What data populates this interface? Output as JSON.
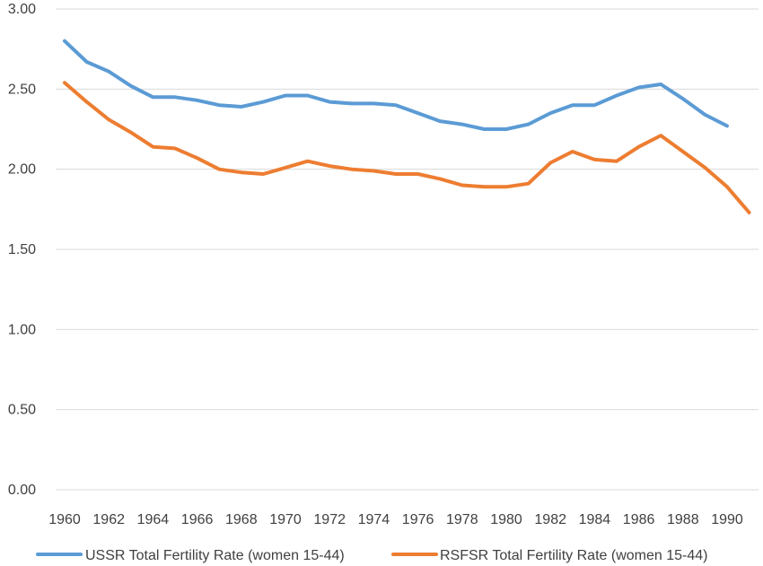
{
  "chart_data": {
    "type": "line",
    "title": "",
    "xlabel": "",
    "ylabel": "",
    "x": [
      1960,
      1961,
      1962,
      1963,
      1964,
      1965,
      1966,
      1967,
      1968,
      1969,
      1970,
      1971,
      1972,
      1973,
      1974,
      1975,
      1976,
      1977,
      1978,
      1979,
      1980,
      1981,
      1982,
      1983,
      1984,
      1985,
      1986,
      1987,
      1988,
      1989,
      1990,
      1991
    ],
    "x_tick_labels": [
      "1960",
      "1962",
      "1964",
      "1966",
      "1968",
      "1970",
      "1972",
      "1974",
      "1976",
      "1978",
      "1980",
      "1982",
      "1984",
      "1986",
      "1988",
      "1990"
    ],
    "y_tick_labels": [
      "0.00",
      "0.50",
      "1.00",
      "1.50",
      "2.00",
      "2.50",
      "3.00"
    ],
    "ylim": [
      0,
      3
    ],
    "grid": true,
    "legend_position": "bottom",
    "series": [
      {
        "name": "USSR Total Fertility Rate (women 15-44)",
        "color": "#5b9bd5",
        "values": [
          2.8,
          2.67,
          2.61,
          2.52,
          2.45,
          2.45,
          2.43,
          2.4,
          2.39,
          2.42,
          2.46,
          2.46,
          2.42,
          2.41,
          2.41,
          2.4,
          2.35,
          2.3,
          2.28,
          2.25,
          2.25,
          2.28,
          2.35,
          2.4,
          2.4,
          2.46,
          2.51,
          2.53,
          2.44,
          2.34,
          2.27,
          null
        ]
      },
      {
        "name": "RSFSR Total Fertility Rate (women 15-44)",
        "color": "#ed7d31",
        "values": [
          2.54,
          2.42,
          2.31,
          2.23,
          2.14,
          2.13,
          2.07,
          2.0,
          1.98,
          1.97,
          2.01,
          2.05,
          2.02,
          2.0,
          1.99,
          1.97,
          1.97,
          1.94,
          1.9,
          1.89,
          1.89,
          1.91,
          2.04,
          2.11,
          2.06,
          2.05,
          2.14,
          2.21,
          2.11,
          2.01,
          1.89,
          1.73
        ]
      }
    ]
  }
}
